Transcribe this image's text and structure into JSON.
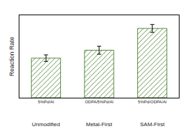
{
  "chart_data": {
    "type": "bar",
    "y_label": "Reaction Rate",
    "categories": [
      "5%Pd/Al",
      "ODPA/5%Pd/Al",
      "5%Pd/ODPA/Al"
    ],
    "values": [
      60,
      72,
      105
    ],
    "errors": [
      5,
      6,
      6
    ],
    "group_labels": [
      "Unmodified",
      "Metal-First",
      "SAM-First"
    ],
    "color": "#7cc447",
    "ylim": [
      0,
      125
    ],
    "tick_labels": "x",
    "grid": false
  }
}
